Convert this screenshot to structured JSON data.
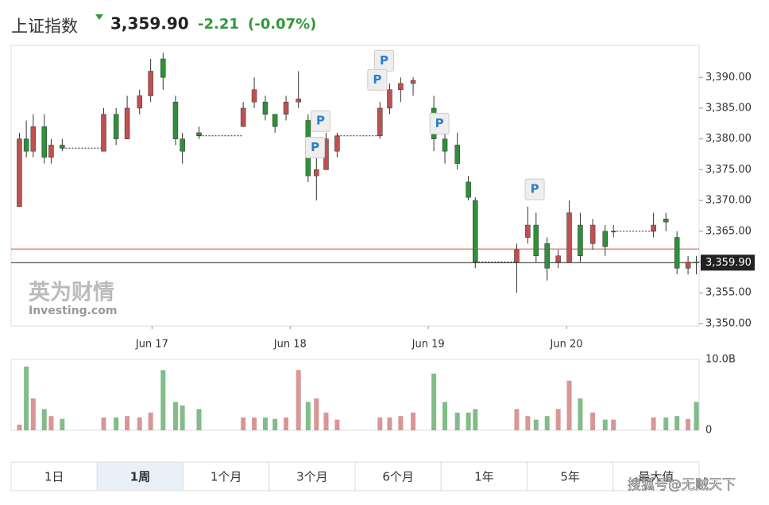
{
  "header": {
    "name": "上证指数",
    "price": "3,359.90",
    "change": "-2.21",
    "change_pct": "(-0.07%)"
  },
  "chart_data": {
    "type": "candlestick",
    "x": [
      16.04,
      16.09,
      16.14,
      16.22,
      16.27,
      16.35,
      16.65,
      16.74,
      16.82,
      16.91,
      16.99,
      17.08,
      17.17,
      17.22,
      17.34,
      17.66,
      17.74,
      17.82,
      17.89,
      17.97,
      18.06,
      18.13,
      18.19,
      18.26,
      18.34,
      18.65,
      18.72,
      18.8,
      18.89,
      19.04,
      19.12,
      19.21,
      19.29,
      19.34,
      19.64,
      19.72,
      19.78,
      19.86,
      19.94,
      20.02,
      20.1,
      20.19,
      20.28,
      20.34,
      20.63,
      20.72,
      20.8,
      20.88,
      20.94
    ],
    "open": [
      3369,
      3380,
      3378,
      3382,
      3377,
      3379,
      3378,
      3384,
      3380,
      3385,
      3387,
      3393,
      3386,
      3380,
      3381,
      3382,
      3386,
      3386,
      3384,
      3384,
      3386,
      3383,
      3374,
      3375,
      3378,
      3380.5,
      3385,
      3388,
      3389,
      3385,
      3380,
      3379,
      3373,
      3370,
      3360,
      3364,
      3366,
      3363,
      3360,
      3360,
      3366,
      3363,
      3365,
      3365,
      3365,
      3367,
      3364,
      3359,
      3360
    ],
    "high": [
      3381,
      3383,
      3384,
      3384,
      3380,
      3380,
      3385,
      3385,
      3387,
      3388,
      3393,
      3394,
      3387,
      3381,
      3382,
      3386,
      3390,
      3387,
      3384,
      3387,
      3391,
      3384,
      3378,
      3381,
      3381,
      3386,
      3389,
      3390,
      3390,
      3387,
      3382,
      3381,
      3374,
      3370.5,
      3363,
      3369,
      3368,
      3364,
      3362,
      3370,
      3368,
      3367,
      3366,
      3366,
      3368,
      3368,
      3365,
      3361,
      3361
    ],
    "low": [
      3369,
      3377,
      3377,
      3376,
      3376,
      3378,
      3378,
      3379,
      3380,
      3384,
      3386,
      3388,
      3379,
      3376,
      3380,
      3382,
      3385,
      3383,
      3381,
      3383,
      3385,
      3373,
      3370,
      3375,
      3377,
      3380,
      3384,
      3386,
      3387,
      3378,
      3376,
      3375,
      3370,
      3359,
      3355,
      3363,
      3360,
      3357,
      3359,
      3360,
      3360,
      3362,
      3361,
      3364,
      3364,
      3365,
      3358,
      3358,
      3358
    ],
    "close": [
      3380,
      3378,
      3382,
      3377,
      3379,
      3378.5,
      3384,
      3380,
      3385,
      3387,
      3391,
      3390,
      3380,
      3378,
      3380.5,
      3385,
      3388,
      3384,
      3382,
      3386,
      3386.5,
      3374,
      3375,
      3380,
      3380.5,
      3385,
      3388,
      3389,
      3389.5,
      3380,
      3378,
      3376,
      3370.5,
      3360,
      3362,
      3366,
      3361,
      3359,
      3361,
      3368,
      3361,
      3366,
      3362.5,
      3365,
      3366,
      3366.5,
      3359,
      3360,
      3359.9
    ],
    "volume": [
      0.8,
      9,
      4.5,
      3,
      2,
      1.6,
      1.8,
      1.8,
      2,
      1.8,
      2.5,
      8.5,
      4,
      3.5,
      3,
      1.8,
      1.8,
      1.8,
      1.6,
      1.8,
      8.5,
      4,
      4.5,
      2.5,
      1.5,
      1.8,
      1.8,
      2,
      2.5,
      8,
      4,
      2.5,
      2.5,
      3,
      3,
      2,
      1.5,
      2,
      3,
      7,
      4.5,
      2.5,
      1.5,
      1.5,
      1.8,
      1.8,
      2,
      1.6,
      4
    ],
    "up_color": "#c05050",
    "down_color": "#2f8f3a",
    "xlim": [
      15.98,
      20.96
    ],
    "xticks": [
      {
        "value": 17,
        "label": "Jun 17"
      },
      {
        "value": 18,
        "label": "Jun 18"
      },
      {
        "value": 19,
        "label": "Jun 19"
      },
      {
        "value": 20,
        "label": "Jun 20"
      }
    ],
    "ylim": [
      3349.6,
      3395.2
    ],
    "yticks": [
      {
        "value": 3350,
        "label": "3,350.00"
      },
      {
        "value": 3355,
        "label": "3,355.00"
      },
      {
        "value": 3360,
        "label": "3,360.00"
      },
      {
        "value": 3365,
        "label": "3,365.00"
      },
      {
        "value": 3370,
        "label": "3,370.00"
      },
      {
        "value": 3375,
        "label": "3,375.00"
      },
      {
        "value": 3380,
        "label": "3,380.00"
      },
      {
        "value": 3385,
        "label": "3,385.00"
      },
      {
        "value": 3390,
        "label": "3,390.00"
      }
    ],
    "volume_lim": [
      0,
      10
    ],
    "volume_ticks": [
      {
        "value": 10,
        "label": "10.0B"
      },
      0
    ],
    "reference_line": 3362.11,
    "reference_color": "#d9534f",
    "last_value": 3359.9,
    "last_label": "3,359.90",
    "markers": [
      {
        "x": 18.68,
        "y": 3392.7,
        "label": "P"
      },
      {
        "x": 18.63,
        "y": 3389.6,
        "label": "P"
      },
      {
        "x": 18.22,
        "y": 3382.9,
        "label": "P"
      },
      {
        "x": 18.18,
        "y": 3378.6,
        "label": "P"
      },
      {
        "x": 19.08,
        "y": 3382.5,
        "label": "P"
      },
      {
        "x": 19.77,
        "y": 3371.8,
        "label": "P"
      }
    ],
    "watermark": [
      "英为财情",
      "Investing.com"
    ]
  },
  "tabs": [
    "1日",
    "1周",
    "1个月",
    "3个月",
    "6个月",
    "1年",
    "5年",
    "最大值"
  ],
  "selected_tab": "1周",
  "overlay": "搜狐号@无贼天下"
}
